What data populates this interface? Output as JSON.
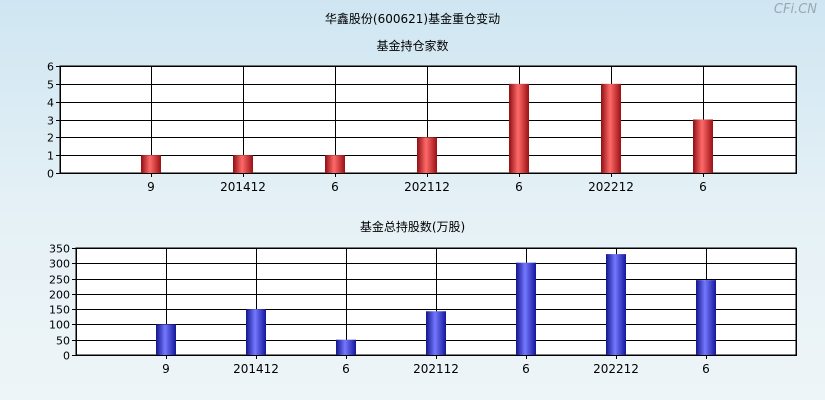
{
  "page": {
    "title": "华鑫股份(600621)基金重仓变动",
    "watermark": "CFi.CN"
  },
  "chart_data": [
    {
      "type": "bar",
      "title": "基金持仓家数",
      "xlabel": "",
      "ylabel": "",
      "categories": [
        "9",
        "201412",
        "6",
        "202112",
        "6",
        "202212",
        "6"
      ],
      "values": [
        1,
        1,
        1,
        2,
        5,
        5,
        3
      ],
      "ylim": [
        0,
        6
      ],
      "yticks": [
        0,
        1,
        2,
        3,
        4,
        5,
        6
      ],
      "grid": true,
      "bar_color": "#e0242a"
    },
    {
      "type": "bar",
      "title": "基金总持股数(万股)",
      "xlabel": "",
      "ylabel": "",
      "categories": [
        "9",
        "201412",
        "6",
        "202112",
        "6",
        "202212",
        "6"
      ],
      "values": [
        100,
        150,
        50,
        143,
        302,
        330,
        245
      ],
      "ylim": [
        0,
        350
      ],
      "yticks": [
        0,
        50,
        100,
        150,
        200,
        250,
        300,
        350
      ],
      "grid": true,
      "bar_color": "#2a2ee0"
    }
  ]
}
